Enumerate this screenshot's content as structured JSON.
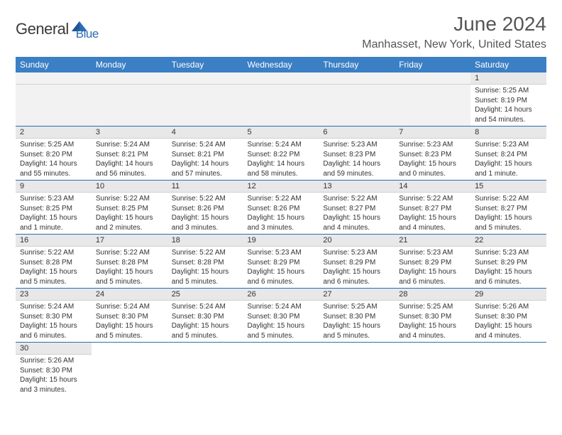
{
  "logo": {
    "text1": "General",
    "text2": "Blue"
  },
  "title": "June 2024",
  "location": "Manhasset, New York, United States",
  "colors": {
    "header_bg": "#3b7fc4",
    "header_text": "#ffffff",
    "daynum_bg": "#e8e8e8",
    "rule": "#2a6db5",
    "logo_blue": "#2a6db5",
    "title_gray": "#555555"
  },
  "weekdays": [
    "Sunday",
    "Monday",
    "Tuesday",
    "Wednesday",
    "Thursday",
    "Friday",
    "Saturday"
  ],
  "weeks": [
    [
      null,
      null,
      null,
      null,
      null,
      null,
      {
        "n": "1",
        "sr": "Sunrise: 5:25 AM",
        "ss": "Sunset: 8:19 PM",
        "dl": "Daylight: 14 hours and 54 minutes."
      }
    ],
    [
      {
        "n": "2",
        "sr": "Sunrise: 5:25 AM",
        "ss": "Sunset: 8:20 PM",
        "dl": "Daylight: 14 hours and 55 minutes."
      },
      {
        "n": "3",
        "sr": "Sunrise: 5:24 AM",
        "ss": "Sunset: 8:21 PM",
        "dl": "Daylight: 14 hours and 56 minutes."
      },
      {
        "n": "4",
        "sr": "Sunrise: 5:24 AM",
        "ss": "Sunset: 8:21 PM",
        "dl": "Daylight: 14 hours and 57 minutes."
      },
      {
        "n": "5",
        "sr": "Sunrise: 5:24 AM",
        "ss": "Sunset: 8:22 PM",
        "dl": "Daylight: 14 hours and 58 minutes."
      },
      {
        "n": "6",
        "sr": "Sunrise: 5:23 AM",
        "ss": "Sunset: 8:23 PM",
        "dl": "Daylight: 14 hours and 59 minutes."
      },
      {
        "n": "7",
        "sr": "Sunrise: 5:23 AM",
        "ss": "Sunset: 8:23 PM",
        "dl": "Daylight: 15 hours and 0 minutes."
      },
      {
        "n": "8",
        "sr": "Sunrise: 5:23 AM",
        "ss": "Sunset: 8:24 PM",
        "dl": "Daylight: 15 hours and 1 minute."
      }
    ],
    [
      {
        "n": "9",
        "sr": "Sunrise: 5:23 AM",
        "ss": "Sunset: 8:25 PM",
        "dl": "Daylight: 15 hours and 1 minute."
      },
      {
        "n": "10",
        "sr": "Sunrise: 5:22 AM",
        "ss": "Sunset: 8:25 PM",
        "dl": "Daylight: 15 hours and 2 minutes."
      },
      {
        "n": "11",
        "sr": "Sunrise: 5:22 AM",
        "ss": "Sunset: 8:26 PM",
        "dl": "Daylight: 15 hours and 3 minutes."
      },
      {
        "n": "12",
        "sr": "Sunrise: 5:22 AM",
        "ss": "Sunset: 8:26 PM",
        "dl": "Daylight: 15 hours and 3 minutes."
      },
      {
        "n": "13",
        "sr": "Sunrise: 5:22 AM",
        "ss": "Sunset: 8:27 PM",
        "dl": "Daylight: 15 hours and 4 minutes."
      },
      {
        "n": "14",
        "sr": "Sunrise: 5:22 AM",
        "ss": "Sunset: 8:27 PM",
        "dl": "Daylight: 15 hours and 4 minutes."
      },
      {
        "n": "15",
        "sr": "Sunrise: 5:22 AM",
        "ss": "Sunset: 8:27 PM",
        "dl": "Daylight: 15 hours and 5 minutes."
      }
    ],
    [
      {
        "n": "16",
        "sr": "Sunrise: 5:22 AM",
        "ss": "Sunset: 8:28 PM",
        "dl": "Daylight: 15 hours and 5 minutes."
      },
      {
        "n": "17",
        "sr": "Sunrise: 5:22 AM",
        "ss": "Sunset: 8:28 PM",
        "dl": "Daylight: 15 hours and 5 minutes."
      },
      {
        "n": "18",
        "sr": "Sunrise: 5:22 AM",
        "ss": "Sunset: 8:28 PM",
        "dl": "Daylight: 15 hours and 5 minutes."
      },
      {
        "n": "19",
        "sr": "Sunrise: 5:23 AM",
        "ss": "Sunset: 8:29 PM",
        "dl": "Daylight: 15 hours and 6 minutes."
      },
      {
        "n": "20",
        "sr": "Sunrise: 5:23 AM",
        "ss": "Sunset: 8:29 PM",
        "dl": "Daylight: 15 hours and 6 minutes."
      },
      {
        "n": "21",
        "sr": "Sunrise: 5:23 AM",
        "ss": "Sunset: 8:29 PM",
        "dl": "Daylight: 15 hours and 6 minutes."
      },
      {
        "n": "22",
        "sr": "Sunrise: 5:23 AM",
        "ss": "Sunset: 8:29 PM",
        "dl": "Daylight: 15 hours and 6 minutes."
      }
    ],
    [
      {
        "n": "23",
        "sr": "Sunrise: 5:24 AM",
        "ss": "Sunset: 8:30 PM",
        "dl": "Daylight: 15 hours and 6 minutes."
      },
      {
        "n": "24",
        "sr": "Sunrise: 5:24 AM",
        "ss": "Sunset: 8:30 PM",
        "dl": "Daylight: 15 hours and 5 minutes."
      },
      {
        "n": "25",
        "sr": "Sunrise: 5:24 AM",
        "ss": "Sunset: 8:30 PM",
        "dl": "Daylight: 15 hours and 5 minutes."
      },
      {
        "n": "26",
        "sr": "Sunrise: 5:24 AM",
        "ss": "Sunset: 8:30 PM",
        "dl": "Daylight: 15 hours and 5 minutes."
      },
      {
        "n": "27",
        "sr": "Sunrise: 5:25 AM",
        "ss": "Sunset: 8:30 PM",
        "dl": "Daylight: 15 hours and 5 minutes."
      },
      {
        "n": "28",
        "sr": "Sunrise: 5:25 AM",
        "ss": "Sunset: 8:30 PM",
        "dl": "Daylight: 15 hours and 4 minutes."
      },
      {
        "n": "29",
        "sr": "Sunrise: 5:26 AM",
        "ss": "Sunset: 8:30 PM",
        "dl": "Daylight: 15 hours and 4 minutes."
      }
    ],
    [
      {
        "n": "30",
        "sr": "Sunrise: 5:26 AM",
        "ss": "Sunset: 8:30 PM",
        "dl": "Daylight: 15 hours and 3 minutes."
      },
      null,
      null,
      null,
      null,
      null,
      null
    ]
  ]
}
